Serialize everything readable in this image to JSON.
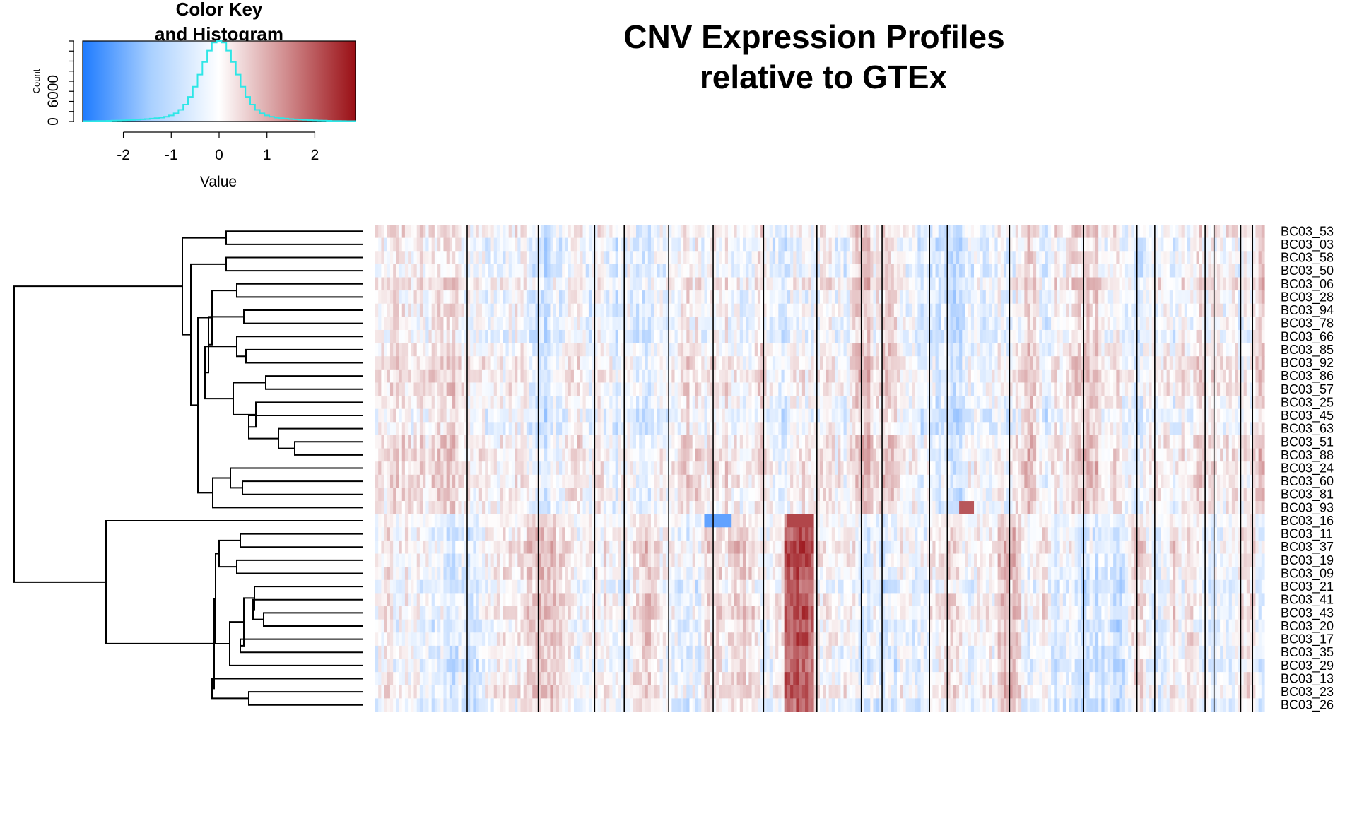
{
  "chart_data": {
    "type": "heatmap",
    "title_line1": "CNV Expression Profiles",
    "title_line2": "relative to GTEx",
    "color_key": {
      "title_line1": "Color Key",
      "title_line2": "and Histogram",
      "xlabel": "Value",
      "ylabel": "Count",
      "x_ticks": [
        "-2",
        "-1",
        "0",
        "1",
        "2"
      ],
      "x_tick_values": [
        -2,
        -1,
        0,
        1,
        2
      ],
      "y_ticks": [
        "0",
        "6000"
      ],
      "y_tick_values": [
        0,
        6000
      ],
      "xlim": [
        -2.85,
        2.85
      ],
      "ylim": [
        0,
        16000
      ],
      "colors": {
        "low": "#1e7bff",
        "mid": "#ffffff",
        "high": "#9a0f15",
        "histogram": "#2ee6e6"
      }
    },
    "rows": [
      "BC03_53",
      "BC03_03",
      "BC03_58",
      "BC03_50",
      "BC03_06",
      "BC03_28",
      "BC03_94",
      "BC03_78",
      "BC03_66",
      "BC03_85",
      "BC03_92",
      "BC03_86",
      "BC03_57",
      "BC03_25",
      "BC03_45",
      "BC03_63",
      "BC03_51",
      "BC03_88",
      "BC03_24",
      "BC03_60",
      "BC03_81",
      "BC03_93",
      "BC03_16",
      "BC03_11",
      "BC03_37",
      "BC03_19",
      "BC03_09",
      "BC03_21",
      "BC03_41",
      "BC03_43",
      "BC03_20",
      "BC03_17",
      "BC03_35",
      "BC03_29",
      "BC03_13",
      "BC03_23",
      "BC03_26"
    ],
    "group_b_start": 22,
    "column_count": 300,
    "column_separators": [
      31,
      55,
      74,
      84,
      99,
      114,
      131,
      149,
      164,
      171,
      187,
      193,
      214,
      239,
      257,
      263,
      280,
      283,
      292,
      296
    ]
  }
}
